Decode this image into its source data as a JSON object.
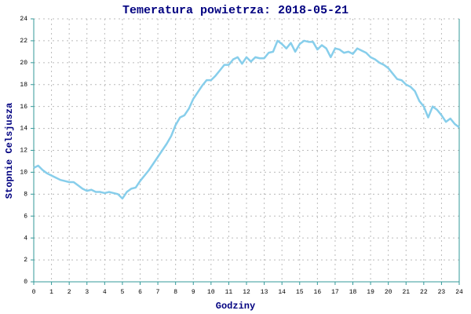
{
  "chart_data": {
    "type": "line",
    "title": "Temeratura powietrza: 2018-05-21",
    "xlabel": "Godziny",
    "ylabel": "Stopnie Celsjusza",
    "color": "#87ceeb",
    "grid": true,
    "x": [
      0,
      0.25,
      0.5,
      0.75,
      1,
      1.25,
      1.5,
      1.75,
      2,
      2.25,
      2.5,
      2.75,
      3,
      3.25,
      3.5,
      3.75,
      4,
      4.25,
      4.5,
      4.75,
      5,
      5.25,
      5.5,
      5.75,
      6,
      6.25,
      6.5,
      6.75,
      7,
      7.25,
      7.5,
      7.75,
      8,
      8.25,
      8.5,
      8.75,
      9,
      9.25,
      9.5,
      9.75,
      10,
      10.25,
      10.5,
      10.75,
      11,
      11.25,
      11.5,
      11.75,
      12,
      12.25,
      12.5,
      12.75,
      13,
      13.25,
      13.5,
      13.75,
      14,
      14.25,
      14.5,
      14.75,
      15,
      15.25,
      15.5,
      15.75,
      16,
      16.25,
      16.5,
      16.75,
      17,
      17.25,
      17.5,
      17.75,
      18,
      18.25,
      18.5,
      18.75,
      19,
      19.25,
      19.5,
      19.75,
      20,
      20.25,
      20.5,
      20.75,
      21,
      21.25,
      21.5,
      21.75,
      22,
      22.25,
      22.5,
      22.75,
      23,
      23.25,
      23.5,
      23.75,
      24
    ],
    "values": [
      10.4,
      10.6,
      10.2,
      9.9,
      9.7,
      9.5,
      9.3,
      9.2,
      9.1,
      9.1,
      8.8,
      8.5,
      8.3,
      8.4,
      8.2,
      8.2,
      8.1,
      8.2,
      8.1,
      8.0,
      7.6,
      8.2,
      8.5,
      8.6,
      9.2,
      9.7,
      10.2,
      10.8,
      11.4,
      12.0,
      12.6,
      13.3,
      14.3,
      15.0,
      15.2,
      15.8,
      16.7,
      17.3,
      17.9,
      18.4,
      18.4,
      18.8,
      19.3,
      19.8,
      19.8,
      20.3,
      20.5,
      19.9,
      20.5,
      20.1,
      20.5,
      20.4,
      20.4,
      20.9,
      21.0,
      22.0,
      21.7,
      21.3,
      21.8,
      21.0,
      21.7,
      22.0,
      21.9,
      21.9,
      21.2,
      21.6,
      21.3,
      20.5,
      21.3,
      21.2,
      20.9,
      21.0,
      20.8,
      21.3,
      21.1,
      20.9,
      20.5,
      20.3,
      20.0,
      19.8,
      19.5,
      19.0,
      18.5,
      18.4,
      18.0,
      17.8,
      17.4,
      16.5,
      16.0,
      15.0,
      16.0,
      15.7,
      15.2,
      14.6,
      14.9,
      14.4,
      14.1
    ],
    "xlim": [
      0,
      24
    ],
    "ylim": [
      0,
      24
    ],
    "xticks": [
      0,
      1,
      2,
      3,
      4,
      5,
      6,
      7,
      8,
      9,
      10,
      11,
      12,
      13,
      14,
      15,
      16,
      17,
      18,
      19,
      20,
      21,
      22,
      23,
      24
    ],
    "yticks": [
      0,
      2,
      4,
      6,
      8,
      10,
      12,
      14,
      16,
      18,
      20,
      22,
      24
    ]
  }
}
